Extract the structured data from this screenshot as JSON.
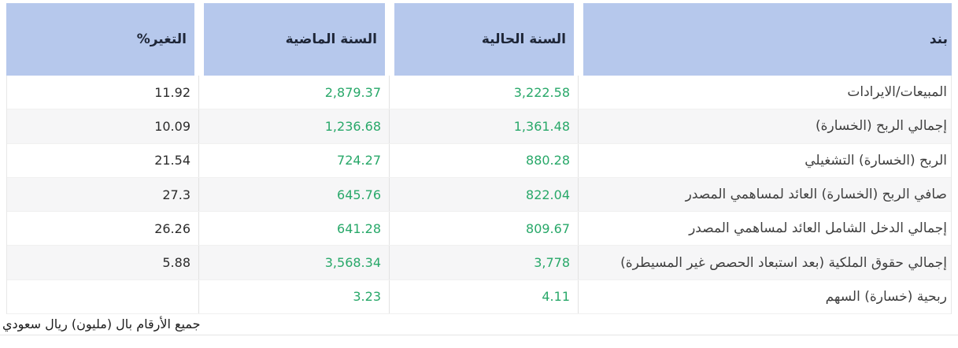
{
  "table": {
    "headers": {
      "item": "بند",
      "current_year": "السنة الحالية",
      "previous_year": "السنة الماضية",
      "change": "التغير%"
    },
    "rows": [
      {
        "item": "المبيعات/الايرادات",
        "current": "3,222.58",
        "previous": "2,879.37",
        "change": "11.92"
      },
      {
        "item": "إجمالي الربح (الخسارة)",
        "current": "1,361.48",
        "previous": "1,236.68",
        "change": "10.09"
      },
      {
        "item": "الربح (الخسارة) التشغيلي",
        "current": "880.28",
        "previous": "724.27",
        "change": "21.54"
      },
      {
        "item": "صافي الربح (الخسارة) العائد لمساهمي المصدر",
        "current": "822.04",
        "previous": "645.76",
        "change": "27.3"
      },
      {
        "item": "إجمالي الدخل الشامل العائد لمساهمي المصدر",
        "current": "809.67",
        "previous": "641.28",
        "change": "26.26"
      },
      {
        "item": "إجمالي حقوق الملكية (بعد استبعاد الحصص غير المسيطرة)",
        "current": "3,778",
        "previous": "3,568.34",
        "change": "5.88"
      },
      {
        "item": "ربحية (خسارة) السهم",
        "current": "4.11",
        "previous": "3.23",
        "change": ""
      }
    ],
    "footnote": "جميع الأرقام بال (مليون) ريال سعودي"
  },
  "colors": {
    "header_bg": "#b6c8ec",
    "header_text": "#1e2637",
    "positive": "#28a869",
    "change_text": "#2b2b2b",
    "item_text": "#3f3f3f",
    "row_alt_bg": "#f6f6f7",
    "border": "#e2e2e2",
    "footnote_text": "#1c1c1c"
  }
}
